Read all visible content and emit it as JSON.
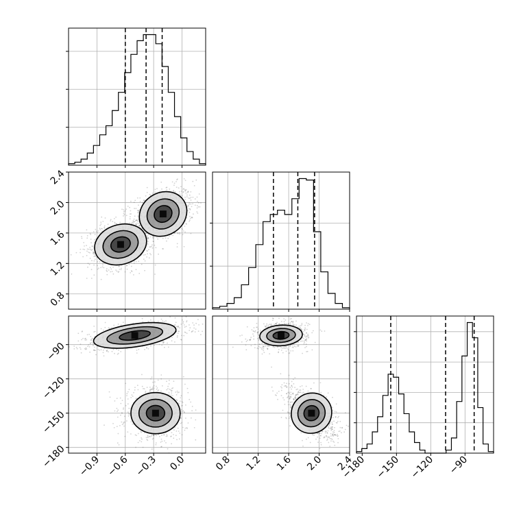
{
  "chart_data": {
    "type": "corner",
    "grid": true,
    "parameters": [
      {
        "range": [
          -1.2,
          0.25
        ],
        "ticks": [
          -0.9,
          -0.6,
          -0.3,
          0.0
        ],
        "tick_labels": [
          "−0.9",
          "−0.6",
          "−0.3",
          "0.0"
        ],
        "quantiles": [
          -0.6,
          -0.38,
          -0.21
        ],
        "histogram_counts": [
          1,
          2,
          4,
          8,
          13,
          20,
          26,
          36,
          48,
          61,
          73,
          82,
          86,
          86,
          80,
          65,
          48,
          32,
          18,
          9,
          4,
          1
        ]
      },
      {
        "range": [
          0.6,
          2.4
        ],
        "ticks": [
          0.8,
          1.2,
          1.6,
          2.0,
          2.4
        ],
        "tick_labels": [
          "0.8",
          "1.2",
          "1.6",
          "2.0",
          "2.4"
        ],
        "quantiles": [
          1.4,
          1.72,
          1.94
        ],
        "histogram_counts": [
          1,
          2,
          4,
          8,
          17,
          29,
          45,
          61,
          66,
          69,
          66,
          77,
          91,
          90,
          54,
          26,
          11,
          4,
          1
        ]
      },
      {
        "range": [
          -185,
          -65
        ],
        "ticks": [
          -180,
          -150,
          -120,
          -90
        ],
        "tick_labels": [
          "−180",
          "−150",
          "−120",
          "−90"
        ],
        "quantiles": [
          -155,
          -107,
          -82
        ],
        "histogram_counts": [
          1,
          3,
          6,
          14,
          24,
          38,
          52,
          50,
          39,
          26,
          14,
          7,
          2,
          0,
          0,
          0,
          0,
          2,
          10,
          34,
          64,
          86,
          76,
          30,
          6,
          1
        ]
      }
    ],
    "histogram_yaxis_ticks": [
      [
        25,
        50,
        75
      ],
      [
        30,
        60
      ],
      [
        20,
        40,
        60,
        80
      ]
    ],
    "pair_panels": [
      {
        "x_param": 0,
        "y_param": 1,
        "description": "two overlapping clusters, elongated positive correlation",
        "clusters": [
          {
            "x": -0.2,
            "y": 1.85,
            "sx": 0.13,
            "sy": 0.14,
            "rho": 0.3,
            "weight": 0.55
          },
          {
            "x": -0.65,
            "y": 1.45,
            "sx": 0.14,
            "sy": 0.13,
            "rho": 0.2,
            "weight": 0.45
          }
        ]
      },
      {
        "x_param": 0,
        "y_param": 2,
        "description": "two separated clusters",
        "clusters": [
          {
            "x": -0.5,
            "y": -82,
            "sx": 0.22,
            "sy": 5,
            "rho": 0.5,
            "weight": 0.5
          },
          {
            "x": -0.28,
            "y": -150,
            "sx": 0.13,
            "sy": 9,
            "rho": 0.0,
            "weight": 0.5
          }
        ]
      },
      {
        "x_param": 1,
        "y_param": 2,
        "description": "two separated clusters",
        "clusters": [
          {
            "x": 1.5,
            "y": -82,
            "sx": 0.14,
            "sy": 4.5,
            "rho": 0.1,
            "weight": 0.5
          },
          {
            "x": 1.9,
            "y": -150,
            "sx": 0.13,
            "sy": 9,
            "rho": -0.55,
            "weight": 0.5
          }
        ]
      }
    ],
    "contour_levels": 3,
    "colors": {
      "line": "#000000",
      "grid": "#b0b0b0",
      "scatter": "#5a5a5a",
      "fill": "#000000"
    }
  }
}
